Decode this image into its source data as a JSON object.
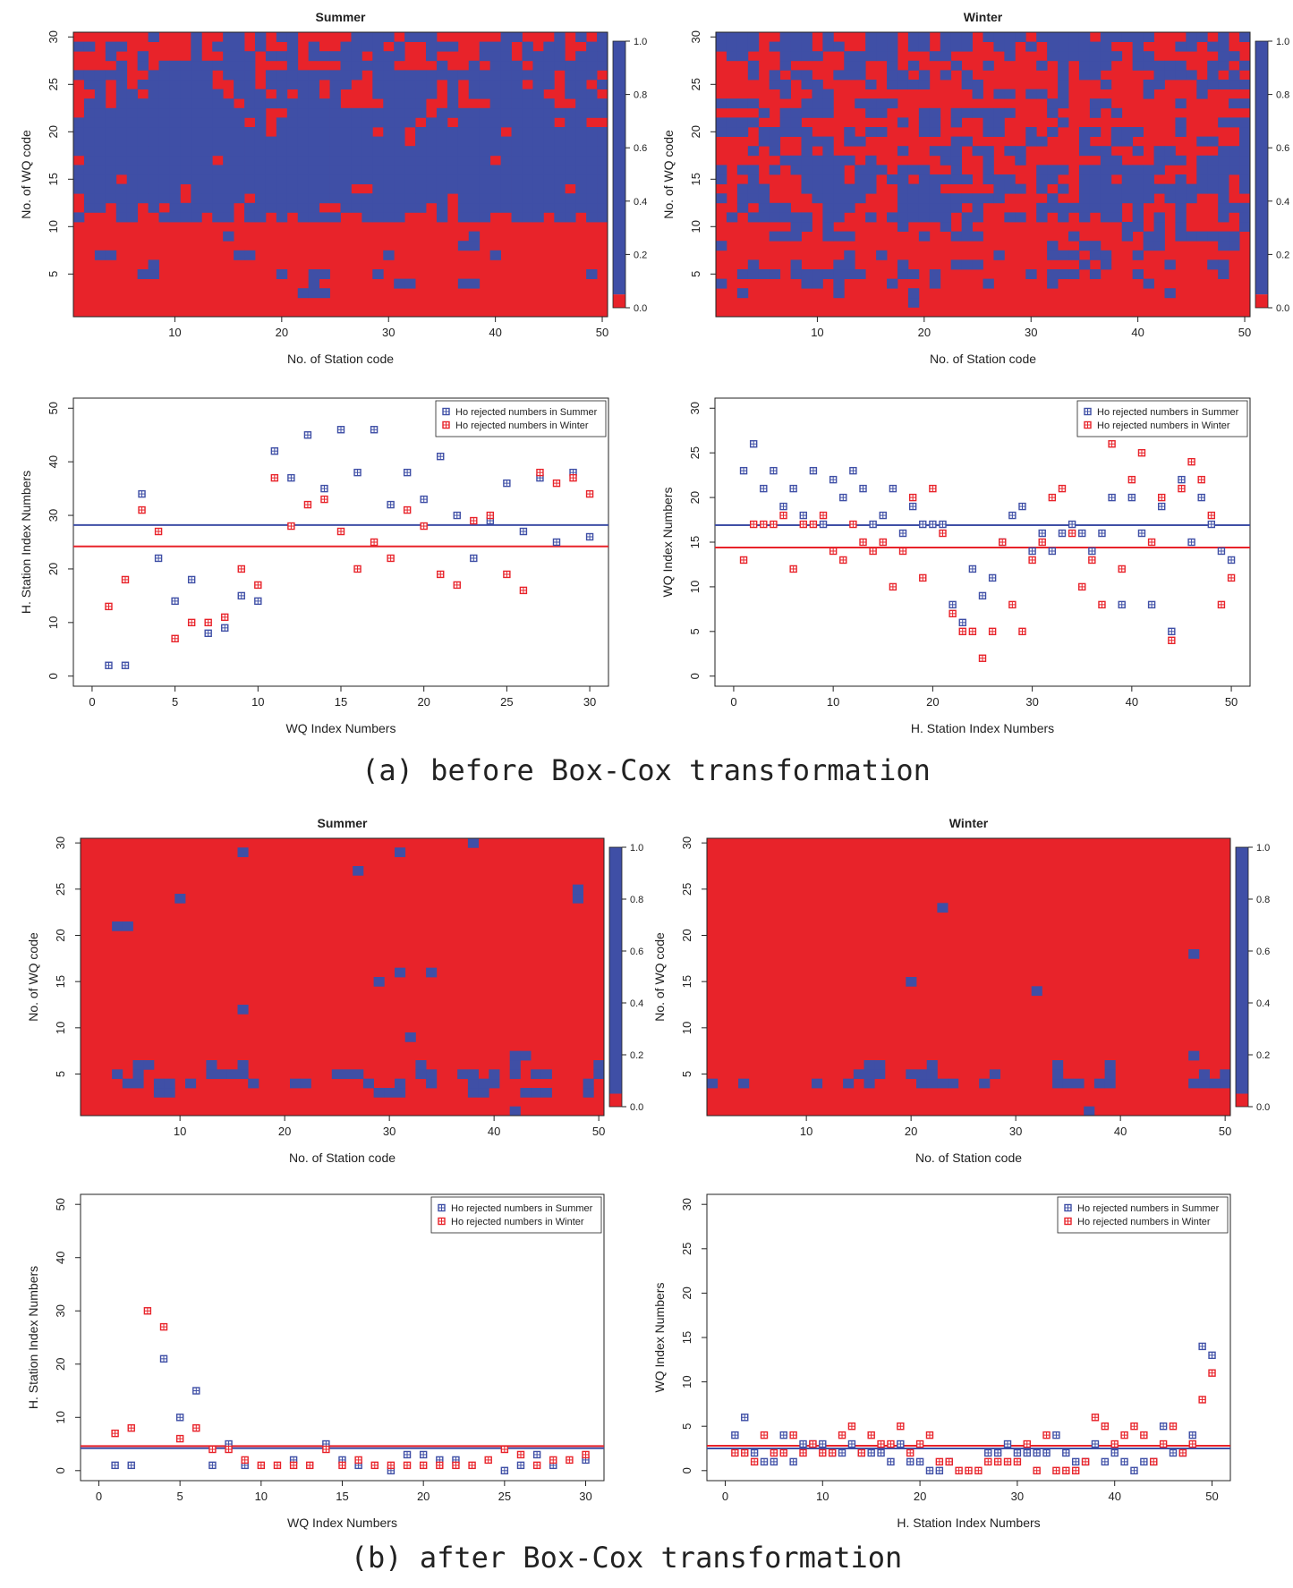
{
  "figure": {
    "caption_a": "(a) before Box-Cox transformation",
    "caption_b": "(b) after Box-Cox transformation"
  },
  "colors": {
    "reject": "#3f4fa6",
    "accept": "#e8232a",
    "axis": "#000000"
  },
  "chart_data": [
    {
      "id": "a-summer-heat",
      "type": "heatmap",
      "title": "Summer",
      "xlabel": "No. of Station code",
      "ylabel": "No. of WQ code",
      "xlim": [
        1,
        50
      ],
      "ylim": [
        1,
        30
      ],
      "xticks": [
        10,
        20,
        30,
        40,
        50
      ],
      "yticks": [
        5,
        10,
        15,
        20,
        25,
        30
      ],
      "colorbar": {
        "ticks": [
          "0.0",
          "0.2",
          "0.4",
          "0.6",
          "0.8",
          "1.0"
        ],
        "low": "#e8232a",
        "high": "#3f4fa6"
      },
      "pattern": {
        "seed": 11,
        "rows": [
          0.1,
          0.15,
          0.2,
          0.25,
          0.3,
          0.2,
          0.25,
          0.2,
          0.15,
          0.12,
          0.8,
          0.82,
          0.85,
          0.85,
          0.88,
          0.88,
          0.85,
          0.85,
          0.82,
          0.8,
          0.75,
          0.7,
          0.65,
          0.65,
          0.6,
          0.6,
          0.55,
          0.55,
          0.5,
          0.45
        ]
      }
    },
    {
      "id": "a-winter-heat",
      "type": "heatmap",
      "title": "Winter",
      "xlabel": "No. of Station code",
      "ylabel": "No. of WQ code",
      "xlim": [
        1,
        50
      ],
      "ylim": [
        1,
        30
      ],
      "xticks": [
        10,
        20,
        30,
        40,
        50
      ],
      "yticks": [
        5,
        10,
        15,
        20,
        25,
        30
      ],
      "colorbar": {
        "ticks": [
          "0.0",
          "0.2",
          "0.4",
          "0.6",
          "0.8",
          "1.0"
        ],
        "low": "#e8232a",
        "high": "#3f4fa6"
      },
      "pattern": {
        "seed": 23,
        "rows": [
          0.2,
          0.2,
          0.25,
          0.3,
          0.35,
          0.3,
          0.3,
          0.3,
          0.35,
          0.4,
          0.55,
          0.6,
          0.6,
          0.6,
          0.55,
          0.55,
          0.5,
          0.5,
          0.45,
          0.45,
          0.45,
          0.45,
          0.4,
          0.4,
          0.45,
          0.45,
          0.5,
          0.5,
          0.55,
          0.6
        ]
      }
    },
    {
      "id": "a-summer-scatter",
      "type": "scatter",
      "xlabel": "WQ Index Numbers",
      "ylabel": "H. Station Index Numbers",
      "xlim": [
        0,
        30
      ],
      "ylim": [
        0,
        50
      ],
      "xticks": [
        0,
        5,
        10,
        15,
        20,
        25,
        30
      ],
      "yticks": [
        0,
        10,
        20,
        30,
        40,
        50
      ],
      "legend": "top-right",
      "series": [
        {
          "name": "Ho rejected numbers in Summer",
          "color": "#3f4fa6",
          "mean": 28.2,
          "x": [
            1,
            2,
            3,
            4,
            5,
            6,
            7,
            8,
            9,
            10,
            11,
            12,
            13,
            14,
            15,
            16,
            17,
            18,
            19,
            20,
            21,
            22,
            23,
            24,
            25,
            26,
            27,
            28,
            29,
            30
          ],
          "y": [
            2,
            2,
            34,
            22,
            14,
            18,
            8,
            9,
            15,
            14,
            42,
            37,
            45,
            35,
            46,
            38,
            46,
            32,
            38,
            33,
            41,
            30,
            22,
            29,
            36,
            27,
            37,
            25,
            38,
            26
          ]
        },
        {
          "name": "Ho rejected numbers in Winter",
          "color": "#e8232a",
          "mean": 24.2,
          "x": [
            1,
            2,
            3,
            4,
            5,
            6,
            7,
            8,
            9,
            10,
            11,
            12,
            13,
            14,
            15,
            16,
            17,
            18,
            19,
            20,
            21,
            22,
            23,
            24,
            25,
            26,
            27,
            28,
            29,
            30
          ],
          "y": [
            13,
            18,
            31,
            27,
            7,
            10,
            10,
            11,
            20,
            17,
            37,
            28,
            32,
            33,
            27,
            20,
            25,
            22,
            31,
            28,
            19,
            17,
            29,
            30,
            19,
            16,
            38,
            36,
            37,
            34
          ]
        }
      ]
    },
    {
      "id": "a-winter-scatter",
      "type": "scatter",
      "xlabel": "H. Station Index Numbers",
      "ylabel": "WQ Index Numbers",
      "xlim": [
        0,
        50
      ],
      "ylim": [
        0,
        30
      ],
      "xticks": [
        0,
        10,
        20,
        30,
        40,
        50
      ],
      "yticks": [
        0,
        5,
        10,
        15,
        20,
        25,
        30
      ],
      "legend": "top-right",
      "series": [
        {
          "name": "Ho rejected numbers in Summer",
          "color": "#3f4fa6",
          "mean": 16.9,
          "x": [
            1,
            2,
            3,
            4,
            5,
            6,
            7,
            8,
            9,
            10,
            11,
            12,
            13,
            14,
            15,
            16,
            17,
            18,
            19,
            20,
            21,
            22,
            23,
            24,
            25,
            26,
            27,
            28,
            29,
            30,
            31,
            32,
            33,
            34,
            35,
            36,
            37,
            38,
            39,
            40,
            41,
            42,
            43,
            44,
            45,
            46,
            47,
            48,
            49,
            50
          ],
          "y": [
            23,
            26,
            21,
            23,
            19,
            21,
            18,
            23,
            17,
            22,
            20,
            23,
            21,
            17,
            18,
            21,
            16,
            19,
            17,
            17,
            17,
            8,
            6,
            12,
            9,
            11,
            15,
            18,
            19,
            14,
            16,
            14,
            16,
            17,
            16,
            14,
            16,
            20,
            8,
            20,
            16,
            8,
            19,
            5,
            22,
            15,
            20,
            17,
            14,
            13
          ]
        },
        {
          "name": "Ho rejected numbers in Winter",
          "color": "#e8232a",
          "mean": 14.4,
          "x": [
            1,
            2,
            3,
            4,
            5,
            6,
            7,
            8,
            9,
            10,
            11,
            12,
            13,
            14,
            15,
            16,
            17,
            18,
            19,
            20,
            21,
            22,
            23,
            24,
            25,
            26,
            27,
            28,
            29,
            30,
            31,
            32,
            33,
            34,
            35,
            36,
            37,
            38,
            39,
            40,
            41,
            42,
            43,
            44,
            45,
            46,
            47,
            48,
            49,
            50
          ],
          "y": [
            13,
            17,
            17,
            17,
            18,
            12,
            17,
            17,
            18,
            14,
            13,
            17,
            15,
            14,
            15,
            10,
            14,
            20,
            11,
            21,
            16,
            7,
            5,
            5,
            2,
            5,
            15,
            8,
            5,
            13,
            15,
            20,
            21,
            16,
            10,
            13,
            8,
            26,
            12,
            22,
            25,
            15,
            20,
            4,
            21,
            24,
            22,
            18,
            8,
            11
          ]
        }
      ]
    },
    {
      "id": "b-summer-heat",
      "type": "heatmap",
      "title": "Summer",
      "xlabel": "No. of Station code",
      "ylabel": "No. of WQ code",
      "xlim": [
        1,
        50
      ],
      "ylim": [
        1,
        30
      ],
      "xticks": [
        10,
        20,
        30,
        40,
        50
      ],
      "yticks": [
        5,
        10,
        15,
        20,
        25,
        30
      ],
      "colorbar": {
        "ticks": [
          "0.0",
          "0.2",
          "0.4",
          "0.6",
          "0.8",
          "1.0"
        ],
        "low": "#e8232a",
        "high": "#3f4fa6"
      },
      "pattern": {
        "seed": 37,
        "rows": [
          0.02,
          0.04,
          0.3,
          0.35,
          0.45,
          0.2,
          0.1,
          0.05,
          0.04,
          0.04,
          0.03,
          0.03,
          0.03,
          0.04,
          0.04,
          0.04,
          0.03,
          0.03,
          0.04,
          0.04,
          0.03,
          0.03,
          0.03,
          0.03,
          0.03,
          0.03,
          0.04,
          0.04,
          0.05,
          0.05
        ]
      }
    },
    {
      "id": "b-winter-heat",
      "type": "heatmap",
      "title": "Winter",
      "xlabel": "No. of Station code",
      "ylabel": "No. of WQ code",
      "xlim": [
        1,
        50
      ],
      "ylim": [
        1,
        30
      ],
      "xticks": [
        10,
        20,
        30,
        40,
        50
      ],
      "yticks": [
        5,
        10,
        15,
        20,
        25,
        30
      ],
      "colorbar": {
        "ticks": [
          "0.0",
          "0.2",
          "0.4",
          "0.6",
          "0.8",
          "1.0"
        ],
        "low": "#e8232a",
        "high": "#3f4fa6"
      },
      "pattern": {
        "seed": 53,
        "rows": [
          0.06,
          0.1,
          0.15,
          0.45,
          0.25,
          0.1,
          0.06,
          0.05,
          0.05,
          0.05,
          0.04,
          0.04,
          0.04,
          0.04,
          0.05,
          0.05,
          0.04,
          0.04,
          0.04,
          0.05,
          0.05,
          0.04,
          0.04,
          0.05,
          0.05,
          0.06,
          0.05,
          0.04,
          0.05,
          0.06
        ]
      }
    },
    {
      "id": "b-summer-scatter",
      "type": "scatter",
      "xlabel": "WQ Index Numbers",
      "ylabel": "H. Station Index Numbers",
      "xlim": [
        0,
        30
      ],
      "ylim": [
        0,
        50
      ],
      "xticks": [
        0,
        5,
        10,
        15,
        20,
        25,
        30
      ],
      "yticks": [
        0,
        10,
        20,
        30,
        40,
        50
      ],
      "legend": "top-right",
      "series": [
        {
          "name": "Ho rejected numbers in Summer",
          "color": "#3f4fa6",
          "mean": 4.2,
          "x": [
            1,
            2,
            4,
            5,
            6,
            7,
            8,
            9,
            12,
            14,
            15,
            16,
            18,
            19,
            20,
            21,
            22,
            25,
            26,
            27,
            28,
            30
          ],
          "y": [
            1,
            1,
            21,
            10,
            15,
            1,
            5,
            1,
            2,
            5,
            2,
            1,
            0,
            3,
            3,
            2,
            2,
            0,
            1,
            3,
            1,
            2
          ]
        },
        {
          "name": "Ho rejected numbers in Winter",
          "color": "#e8232a",
          "mean": 4.6,
          "x": [
            1,
            2,
            3,
            4,
            5,
            6,
            7,
            8,
            9,
            10,
            11,
            12,
            13,
            14,
            15,
            16,
            17,
            18,
            19,
            20,
            21,
            22,
            23,
            24,
            25,
            26,
            27,
            28,
            29,
            30
          ],
          "y": [
            7,
            8,
            30,
            27,
            6,
            8,
            4,
            4,
            2,
            1,
            1,
            1,
            1,
            4,
            1,
            2,
            1,
            1,
            1,
            1,
            1,
            1,
            1,
            2,
            4,
            3,
            1,
            2,
            2,
            3
          ]
        }
      ]
    },
    {
      "id": "b-winter-scatter",
      "type": "scatter",
      "xlabel": "H. Station Index Numbers",
      "ylabel": "WQ Index Numbers",
      "xlim": [
        0,
        50
      ],
      "ylim": [
        0,
        30
      ],
      "xticks": [
        0,
        10,
        20,
        30,
        40,
        50
      ],
      "yticks": [
        0,
        5,
        10,
        15,
        20,
        25,
        30
      ],
      "legend": "top-right",
      "series": [
        {
          "name": "Ho rejected numbers in Summer",
          "color": "#3f4fa6",
          "mean": 2.5,
          "x": [
            1,
            2,
            3,
            4,
            5,
            6,
            7,
            8,
            9,
            10,
            11,
            12,
            13,
            14,
            15,
            16,
            17,
            18,
            19,
            20,
            21,
            22,
            23,
            27,
            28,
            29,
            30,
            31,
            32,
            33,
            34,
            35,
            36,
            37,
            38,
            39,
            40,
            41,
            42,
            43,
            44,
            45,
            46,
            47,
            48,
            49,
            50
          ],
          "y": [
            4,
            6,
            2,
            1,
            1,
            4,
            1,
            3,
            3,
            3,
            2,
            2,
            3,
            2,
            2,
            2,
            1,
            3,
            1,
            1,
            0,
            0,
            1,
            2,
            2,
            3,
            2,
            2,
            2,
            2,
            4,
            2,
            1,
            1,
            3,
            1,
            2,
            1,
            0,
            1,
            1,
            5,
            2,
            2,
            4,
            14,
            13
          ]
        },
        {
          "name": "Ho rejected numbers in Winter",
          "color": "#e8232a",
          "mean": 2.8,
          "x": [
            1,
            2,
            3,
            4,
            5,
            6,
            7,
            8,
            9,
            10,
            11,
            12,
            13,
            14,
            15,
            16,
            17,
            18,
            19,
            20,
            21,
            22,
            23,
            24,
            25,
            26,
            27,
            28,
            29,
            30,
            31,
            32,
            33,
            34,
            35,
            36,
            37,
            38,
            39,
            40,
            41,
            42,
            43,
            44,
            45,
            46,
            47,
            48,
            49,
            50
          ],
          "y": [
            2,
            2,
            1,
            4,
            2,
            2,
            4,
            2,
            3,
            2,
            2,
            4,
            5,
            2,
            4,
            3,
            3,
            5,
            2,
            3,
            4,
            1,
            1,
            0,
            0,
            0,
            1,
            1,
            1,
            1,
            3,
            0,
            4,
            0,
            0,
            0,
            1,
            6,
            5,
            3,
            4,
            5,
            4,
            1,
            3,
            5,
            2,
            3,
            8,
            11
          ]
        }
      ]
    }
  ]
}
